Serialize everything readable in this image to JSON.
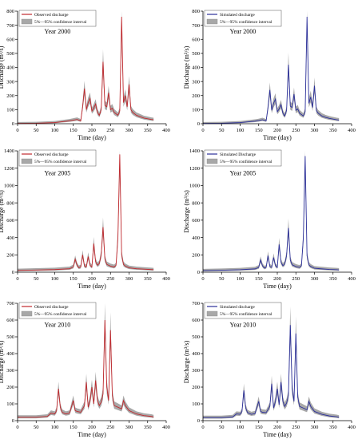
{
  "chart_data": [
    {
      "type": "line",
      "legend": {
        "placement": "top-left",
        "line_label": "Observed discharge",
        "band_label": "5%—95% confidence interval"
      },
      "annotation": "Year 2000",
      "xlabel": "Time (day)",
      "ylabel": "Discharge (m³/s)",
      "xlim": [
        0,
        400
      ],
      "ylim": [
        0,
        800
      ],
      "xticks": [
        0,
        50,
        100,
        150,
        200,
        250,
        300,
        350,
        400
      ],
      "yticks": [
        0,
        100,
        200,
        300,
        400,
        500,
        600,
        700,
        800
      ],
      "line_color": "#c0282d",
      "band_color": "#a8a8a8",
      "series": [
        {
          "name": "Observed discharge",
          "x": [
            0,
            50,
            100,
            140,
            150,
            160,
            170,
            175,
            180,
            185,
            190,
            195,
            200,
            205,
            210,
            215,
            220,
            225,
            230,
            235,
            240,
            245,
            250,
            255,
            260,
            265,
            270,
            275,
            280,
            285,
            290,
            295,
            300,
            305,
            310,
            320,
            330,
            340,
            350,
            360,
            366
          ],
          "y": [
            2,
            3,
            8,
            20,
            25,
            30,
            20,
            120,
            250,
            100,
            150,
            180,
            90,
            110,
            140,
            80,
            60,
            100,
            440,
            130,
            120,
            220,
            100,
            110,
            80,
            70,
            60,
            90,
            760,
            150,
            200,
            120,
            280,
            100,
            80,
            60,
            50,
            40,
            35,
            30,
            28
          ]
        }
      ]
    },
    {
      "type": "line",
      "legend": {
        "placement": "top-left",
        "line_label": "Simulated discharge",
        "band_label": "5%—95% confidence interval"
      },
      "annotation": "Year 2000",
      "xlabel": "Time (day)",
      "ylabel": "Discharge (m³/s)",
      "xlim": [
        0,
        400
      ],
      "ylim": [
        0,
        800
      ],
      "xticks": [
        0,
        50,
        100,
        150,
        200,
        250,
        300,
        350,
        400
      ],
      "yticks": [
        0,
        100,
        200,
        300,
        400,
        500,
        600,
        700,
        800
      ],
      "line_color": "#2b2f9a",
      "band_color": "#a8a8a8",
      "series": [
        {
          "name": "Simulated discharge",
          "x": [
            0,
            50,
            100,
            140,
            150,
            160,
            170,
            175,
            180,
            185,
            190,
            195,
            200,
            205,
            210,
            215,
            220,
            225,
            230,
            235,
            240,
            245,
            250,
            255,
            260,
            265,
            270,
            275,
            280,
            285,
            290,
            295,
            300,
            305,
            310,
            320,
            330,
            340,
            350,
            360,
            366
          ],
          "y": [
            2,
            3,
            8,
            18,
            22,
            28,
            20,
            115,
            240,
            95,
            145,
            175,
            85,
            105,
            135,
            75,
            55,
            95,
            420,
            125,
            115,
            210,
            95,
            105,
            75,
            65,
            55,
            85,
            760,
            145,
            190,
            115,
            270,
            95,
            75,
            55,
            45,
            38,
            33,
            28,
            26
          ]
        }
      ]
    },
    {
      "type": "line",
      "legend": {
        "placement": "top-left",
        "line_label": "Observed discharge",
        "band_label": "5%—95% confidence interval"
      },
      "annotation": "Year 2005",
      "xlabel": "Time (day)",
      "ylabel": "Discharge (m³/s)",
      "xlim": [
        0,
        400
      ],
      "ylim": [
        0,
        1400
      ],
      "xticks": [
        0,
        50,
        100,
        150,
        200,
        250,
        300,
        350,
        400
      ],
      "yticks": [
        0,
        200,
        400,
        600,
        800,
        1000,
        1200,
        1400
      ],
      "line_color": "#c0282d",
      "band_color": "#a8a8a8",
      "series": [
        {
          "name": "Observed discharge",
          "x": [
            0,
            50,
            100,
            140,
            150,
            155,
            160,
            165,
            170,
            175,
            180,
            185,
            190,
            195,
            200,
            205,
            210,
            215,
            220,
            225,
            230,
            235,
            240,
            250,
            260,
            265,
            270,
            275,
            280,
            285,
            290,
            300,
            320,
            340,
            360,
            366
          ],
          "y": [
            20,
            25,
            30,
            40,
            60,
            150,
            80,
            50,
            60,
            200,
            70,
            60,
            180,
            80,
            60,
            330,
            120,
            80,
            100,
            200,
            520,
            150,
            90,
            70,
            60,
            80,
            400,
            1360,
            200,
            90,
            70,
            50,
            40,
            35,
            30,
            28
          ]
        }
      ]
    },
    {
      "type": "line",
      "legend": {
        "placement": "top-left",
        "line_label": "Simulated Discharge",
        "band_label": "5%—95% confidence interval"
      },
      "annotation": "Year 2005",
      "xlabel": "Time (day)",
      "ylabel": "Discharge (m³/s)",
      "xlim": [
        0,
        400
      ],
      "ylim": [
        0,
        1400
      ],
      "xticks": [
        0,
        50,
        100,
        150,
        200,
        250,
        300,
        350,
        400
      ],
      "yticks": [
        0,
        200,
        400,
        600,
        800,
        1000,
        1200,
        1400
      ],
      "line_color": "#2b2f9a",
      "band_color": "#a8a8a8",
      "series": [
        {
          "name": "Simulated Discharge",
          "x": [
            0,
            50,
            100,
            140,
            150,
            155,
            160,
            165,
            170,
            175,
            180,
            185,
            190,
            195,
            200,
            205,
            210,
            215,
            220,
            225,
            230,
            235,
            240,
            250,
            260,
            265,
            270,
            275,
            280,
            285,
            290,
            300,
            320,
            340,
            360,
            366
          ],
          "y": [
            18,
            22,
            28,
            38,
            55,
            140,
            75,
            48,
            55,
            190,
            65,
            55,
            170,
            75,
            55,
            320,
            115,
            75,
            95,
            190,
            510,
            140,
            85,
            65,
            55,
            75,
            390,
            1340,
            190,
            85,
            65,
            45,
            38,
            32,
            28,
            26
          ]
        }
      ]
    },
    {
      "type": "line",
      "legend": {
        "placement": "top-left",
        "line_label": "Observed discharge",
        "band_label": "5%—95% confidence interval"
      },
      "annotation": "Year 2010",
      "xlabel": "Time (day)",
      "ylabel": "Discharge (m³/s)",
      "xlim": [
        0,
        400
      ],
      "ylim": [
        0,
        700
      ],
      "xticks": [
        0,
        50,
        100,
        150,
        200,
        250,
        300,
        350,
        400
      ],
      "yticks": [
        0,
        100,
        200,
        300,
        400,
        500,
        600,
        700
      ],
      "line_color": "#c0282d",
      "band_color": "#a8a8a8",
      "series": [
        {
          "name": "Observed discharge",
          "x": [
            0,
            50,
            80,
            90,
            100,
            105,
            110,
            115,
            120,
            130,
            140,
            150,
            155,
            160,
            170,
            180,
            185,
            190,
            195,
            200,
            205,
            210,
            215,
            220,
            225,
            230,
            235,
            240,
            245,
            250,
            255,
            260,
            270,
            280,
            285,
            290,
            300,
            320,
            340,
            360,
            366
          ],
          "y": [
            20,
            20,
            25,
            45,
            40,
            60,
            190,
            80,
            50,
            40,
            45,
            120,
            60,
            55,
            50,
            90,
            230,
            80,
            120,
            200,
            100,
            240,
            120,
            90,
            110,
            160,
            600,
            200,
            120,
            540,
            150,
            90,
            80,
            70,
            120,
            90,
            60,
            40,
            30,
            25,
            22
          ]
        }
      ]
    },
    {
      "type": "line",
      "legend": {
        "placement": "top-left",
        "line_label": "Simulated discharge",
        "band_label": "5%—95% confidence interval"
      },
      "annotation": "Year 2010",
      "xlabel": "Time (day)",
      "ylabel": "Discharge (m³/s)",
      "xlim": [
        0,
        400
      ],
      "ylim": [
        0,
        700
      ],
      "xticks": [
        0,
        50,
        100,
        150,
        200,
        250,
        300,
        350,
        400
      ],
      "yticks": [
        0,
        100,
        200,
        300,
        400,
        500,
        600,
        700
      ],
      "line_color": "#2b2f9a",
      "band_color": "#a8a8a8",
      "series": [
        {
          "name": "Simulated discharge",
          "x": [
            0,
            50,
            80,
            90,
            100,
            105,
            110,
            115,
            120,
            130,
            140,
            150,
            155,
            160,
            170,
            180,
            185,
            190,
            195,
            200,
            205,
            210,
            215,
            220,
            225,
            230,
            235,
            240,
            245,
            250,
            255,
            260,
            270,
            280,
            285,
            290,
            300,
            320,
            340,
            360,
            366
          ],
          "y": [
            18,
            18,
            22,
            40,
            38,
            55,
            180,
            75,
            48,
            38,
            42,
            115,
            55,
            50,
            48,
            85,
            220,
            75,
            115,
            190,
            95,
            230,
            115,
            85,
            105,
            150,
            570,
            190,
            115,
            520,
            140,
            85,
            75,
            65,
            115,
            85,
            55,
            38,
            28,
            23,
            20
          ]
        }
      ]
    }
  ]
}
